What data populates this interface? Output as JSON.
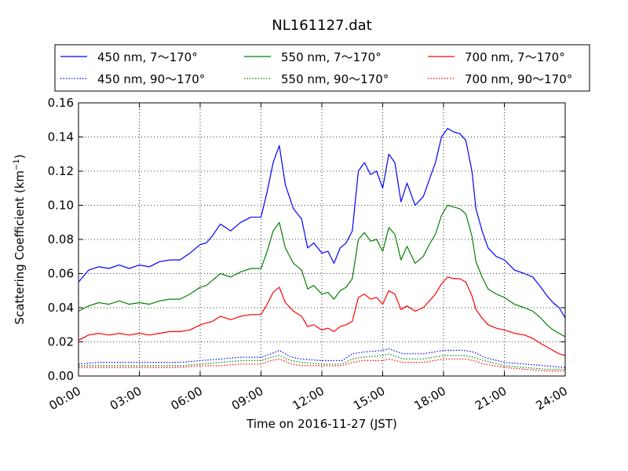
{
  "chart_data": {
    "type": "line",
    "title": "NL161127.dat",
    "xlabel": "Time on 2016-11-27 (JST)",
    "ylabel": "Scattering Coefficient (km",
    "ylabel_exp": "−1",
    "ylabel_close": ")",
    "xlim": [
      0,
      24
    ],
    "ylim": [
      0,
      0.16
    ],
    "grid": true,
    "legend_position": "top",
    "x_unit": "hours",
    "xticks": [
      0,
      3,
      6,
      9,
      12,
      15,
      18,
      21,
      24
    ],
    "xtick_labels": [
      "00:00",
      "03:00",
      "06:00",
      "09:00",
      "12:00",
      "15:00",
      "18:00",
      "21:00",
      "24:00"
    ],
    "yticks": [
      0,
      0.02,
      0.04,
      0.06,
      0.08,
      0.1,
      0.12,
      0.14,
      0.16
    ],
    "ytick_labels": [
      "0.00",
      "0.02",
      "0.04",
      "0.06",
      "0.08",
      "0.10",
      "0.12",
      "0.14",
      "0.16"
    ],
    "series": [
      {
        "name": "450 nm, 7～170°",
        "color": "#0000ff",
        "style": "solid",
        "x": [
          0,
          0.5,
          1,
          1.5,
          2,
          2.5,
          3,
          3.5,
          4,
          4.5,
          5,
          5.5,
          6,
          6.3,
          6.6,
          7,
          7.5,
          8,
          8.5,
          9,
          9.3,
          9.6,
          9.9,
          10.2,
          10.6,
          11,
          11.3,
          11.6,
          12,
          12.3,
          12.6,
          12.9,
          13.2,
          13.5,
          13.8,
          14.1,
          14.4,
          14.7,
          15,
          15.3,
          15.6,
          15.9,
          16.2,
          16.6,
          17,
          17.3,
          17.6,
          17.9,
          18.2,
          18.5,
          18.8,
          19.1,
          19.4,
          19.6,
          19.9,
          20.2,
          20.6,
          21,
          21.5,
          22,
          22.4,
          22.8,
          23.1,
          23.4,
          23.7,
          24
        ],
        "y": [
          0.055,
          0.062,
          0.064,
          0.063,
          0.065,
          0.063,
          0.065,
          0.064,
          0.067,
          0.068,
          0.068,
          0.072,
          0.077,
          0.078,
          0.082,
          0.089,
          0.085,
          0.09,
          0.093,
          0.093,
          0.108,
          0.125,
          0.135,
          0.112,
          0.098,
          0.092,
          0.075,
          0.078,
          0.072,
          0.073,
          0.066,
          0.075,
          0.078,
          0.085,
          0.12,
          0.125,
          0.118,
          0.12,
          0.11,
          0.13,
          0.125,
          0.102,
          0.113,
          0.1,
          0.105,
          0.115,
          0.125,
          0.14,
          0.145,
          0.143,
          0.142,
          0.138,
          0.12,
          0.098,
          0.085,
          0.075,
          0.07,
          0.068,
          0.062,
          0.06,
          0.058,
          0.052,
          0.047,
          0.043,
          0.04,
          0.034
        ]
      },
      {
        "name": "550 nm, 7～170°",
        "color": "#008000",
        "style": "solid",
        "x": [
          0,
          0.5,
          1,
          1.5,
          2,
          2.5,
          3,
          3.5,
          4,
          4.5,
          5,
          5.5,
          6,
          6.3,
          6.6,
          7,
          7.5,
          8,
          8.5,
          9,
          9.3,
          9.6,
          9.9,
          10.2,
          10.6,
          11,
          11.3,
          11.6,
          12,
          12.3,
          12.6,
          12.9,
          13.2,
          13.5,
          13.8,
          14.1,
          14.4,
          14.7,
          15,
          15.3,
          15.6,
          15.9,
          16.2,
          16.6,
          17,
          17.3,
          17.6,
          17.9,
          18.2,
          18.5,
          18.8,
          19.1,
          19.4,
          19.6,
          19.9,
          20.2,
          20.6,
          21,
          21.5,
          22,
          22.4,
          22.8,
          23.1,
          23.4,
          23.7,
          24
        ],
        "y": [
          0.038,
          0.041,
          0.043,
          0.042,
          0.044,
          0.042,
          0.043,
          0.042,
          0.044,
          0.045,
          0.045,
          0.048,
          0.052,
          0.053,
          0.056,
          0.06,
          0.058,
          0.061,
          0.063,
          0.063,
          0.073,
          0.085,
          0.09,
          0.075,
          0.066,
          0.062,
          0.051,
          0.053,
          0.048,
          0.049,
          0.045,
          0.05,
          0.052,
          0.057,
          0.08,
          0.084,
          0.079,
          0.08,
          0.073,
          0.087,
          0.083,
          0.068,
          0.076,
          0.066,
          0.07,
          0.077,
          0.083,
          0.094,
          0.1,
          0.099,
          0.098,
          0.095,
          0.082,
          0.067,
          0.058,
          0.051,
          0.048,
          0.046,
          0.042,
          0.04,
          0.038,
          0.034,
          0.03,
          0.027,
          0.025,
          0.023
        ]
      },
      {
        "name": "700 nm, 7～170°",
        "color": "#ff0000",
        "style": "solid",
        "x": [
          0,
          0.5,
          1,
          1.5,
          2,
          2.5,
          3,
          3.5,
          4,
          4.5,
          5,
          5.5,
          6,
          6.3,
          6.6,
          7,
          7.5,
          8,
          8.5,
          9,
          9.3,
          9.6,
          9.9,
          10.2,
          10.6,
          11,
          11.3,
          11.6,
          12,
          12.3,
          12.6,
          12.9,
          13.2,
          13.5,
          13.8,
          14.1,
          14.4,
          14.7,
          15,
          15.3,
          15.6,
          15.9,
          16.2,
          16.6,
          17,
          17.3,
          17.6,
          17.9,
          18.2,
          18.5,
          18.8,
          19.1,
          19.4,
          19.6,
          19.9,
          20.2,
          20.6,
          21,
          21.5,
          22,
          22.4,
          22.8,
          23.1,
          23.4,
          23.7,
          24
        ],
        "y": [
          0.021,
          0.024,
          0.025,
          0.024,
          0.025,
          0.024,
          0.025,
          0.024,
          0.025,
          0.026,
          0.026,
          0.027,
          0.03,
          0.031,
          0.032,
          0.035,
          0.033,
          0.035,
          0.036,
          0.036,
          0.042,
          0.049,
          0.052,
          0.043,
          0.038,
          0.035,
          0.029,
          0.03,
          0.027,
          0.028,
          0.026,
          0.029,
          0.03,
          0.032,
          0.046,
          0.048,
          0.045,
          0.046,
          0.042,
          0.05,
          0.048,
          0.039,
          0.041,
          0.038,
          0.04,
          0.044,
          0.048,
          0.054,
          0.058,
          0.057,
          0.057,
          0.055,
          0.047,
          0.039,
          0.034,
          0.03,
          0.028,
          0.027,
          0.025,
          0.024,
          0.022,
          0.019,
          0.017,
          0.015,
          0.013,
          0.012
        ]
      },
      {
        "name": "450 nm, 90～170°",
        "color": "#0000ff",
        "style": "dotted",
        "x": [
          0,
          1,
          2,
          3,
          4,
          5,
          6,
          7,
          8,
          9,
          9.5,
          9.9,
          10.5,
          11,
          12,
          13,
          13.5,
          14,
          15,
          15.3,
          16,
          17,
          18,
          18.5,
          19,
          19.5,
          20,
          21,
          22,
          23,
          24
        ],
        "y": [
          0.007,
          0.008,
          0.008,
          0.008,
          0.008,
          0.008,
          0.009,
          0.01,
          0.011,
          0.011,
          0.013,
          0.015,
          0.011,
          0.01,
          0.009,
          0.009,
          0.013,
          0.014,
          0.015,
          0.016,
          0.013,
          0.013,
          0.015,
          0.015,
          0.015,
          0.014,
          0.011,
          0.008,
          0.007,
          0.006,
          0.005
        ]
      },
      {
        "name": "550 nm, 90～170°",
        "color": "#008000",
        "style": "dotted",
        "x": [
          0,
          1,
          2,
          3,
          4,
          5,
          6,
          7,
          8,
          9,
          9.5,
          9.9,
          10.5,
          11,
          12,
          13,
          13.5,
          14,
          15,
          15.3,
          16,
          17,
          18,
          18.5,
          19,
          19.5,
          20,
          21,
          22,
          23,
          24
        ],
        "y": [
          0.006,
          0.006,
          0.006,
          0.006,
          0.006,
          0.006,
          0.007,
          0.008,
          0.009,
          0.009,
          0.011,
          0.012,
          0.009,
          0.008,
          0.007,
          0.007,
          0.01,
          0.011,
          0.012,
          0.013,
          0.01,
          0.01,
          0.012,
          0.012,
          0.012,
          0.011,
          0.009,
          0.006,
          0.005,
          0.004,
          0.004
        ]
      },
      {
        "name": "700 nm, 90～170°",
        "color": "#ff0000",
        "style": "dotted",
        "x": [
          0,
          1,
          2,
          3,
          4,
          5,
          6,
          7,
          8,
          9,
          9.5,
          9.9,
          10.5,
          11,
          12,
          13,
          13.5,
          14,
          15,
          15.3,
          16,
          17,
          18,
          18.5,
          19,
          19.5,
          20,
          21,
          22,
          23,
          24
        ],
        "y": [
          0.005,
          0.005,
          0.005,
          0.005,
          0.005,
          0.005,
          0.006,
          0.006,
          0.007,
          0.007,
          0.009,
          0.01,
          0.007,
          0.006,
          0.006,
          0.006,
          0.008,
          0.009,
          0.009,
          0.01,
          0.008,
          0.008,
          0.01,
          0.01,
          0.01,
          0.009,
          0.007,
          0.005,
          0.004,
          0.003,
          0.003
        ]
      }
    ]
  }
}
